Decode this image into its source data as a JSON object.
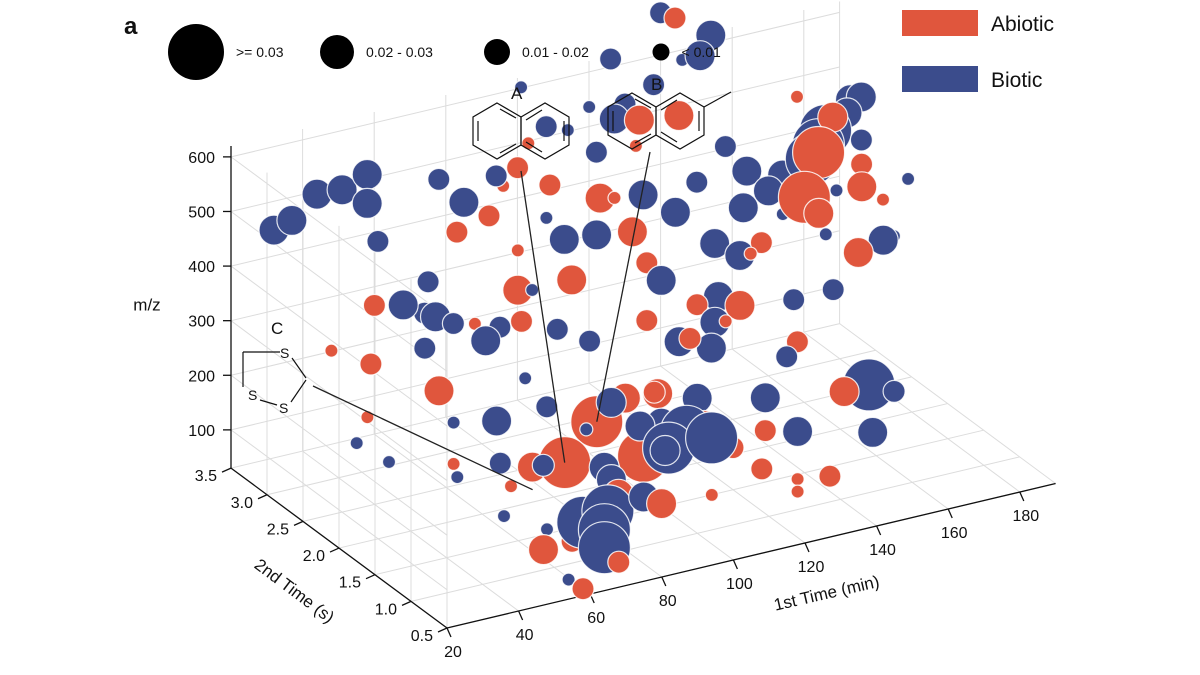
{
  "panel_label": "a",
  "chart_data": {
    "type": "scatter",
    "subtype": "3d-bubble",
    "title": "",
    "axes": {
      "x": {
        "label": "1st Time (min)",
        "ticks": [
          20,
          40,
          60,
          80,
          100,
          120,
          140,
          160,
          180
        ],
        "range": [
          20,
          190
        ]
      },
      "y": {
        "label": "2nd Time (s)",
        "ticks": [
          0.5,
          1.0,
          1.5,
          2.0,
          2.5,
          3.0,
          3.5
        ],
        "tick_labels": [
          "0.5",
          "1.0",
          "1.5",
          "2.0",
          "2.5",
          "3.0",
          "3.5"
        ],
        "range": [
          0.5,
          3.5
        ]
      },
      "z": {
        "label": "m/z",
        "ticks": [
          100,
          200,
          300,
          400,
          500,
          600
        ],
        "range": [
          30,
          620
        ]
      }
    },
    "grid": true,
    "legend": {
      "position": "top-right",
      "entries": [
        {
          "name": "Abiotic",
          "color": "#e0563d"
        },
        {
          "name": "Biotic",
          "color": "#3b4c8c"
        }
      ]
    },
    "size_legend": {
      "position": "top-left",
      "entries": [
        {
          "label": ">= 0.03",
          "class": 4
        },
        {
          "label": "0.02 - 0.03",
          "class": 3
        },
        {
          "label": "0.01 - 0.02",
          "class": 2
        },
        {
          "label": "< 0.01",
          "class": 1
        }
      ]
    },
    "annotations": [
      {
        "label": "A",
        "compound": "naphthalene",
        "anchor": [
          75,
          1.6,
          140
        ]
      },
      {
        "label": "B",
        "compound": "2-methylnaphthalene",
        "anchor": [
          88,
          1.8,
          175
        ]
      },
      {
        "label": "C",
        "compound": "1,2,4-trithiolane",
        "anchor": [
          62,
          1.4,
          130
        ]
      }
    ],
    "series": [
      {
        "name": "Abiotic",
        "color": "#e0563d",
        "points": [
          [
            50,
            3.0,
            330,
            2
          ],
          [
            45,
            2.8,
            250,
            2
          ],
          [
            58,
            2.5,
            210,
            3
          ],
          [
            70,
            1.8,
            120,
            3
          ],
          [
            75,
            1.6,
            140,
            4
          ],
          [
            88,
            1.8,
            175,
            4
          ],
          [
            95,
            1.5,
            130,
            4
          ],
          [
            100,
            2.0,
            180,
            3
          ],
          [
            105,
            1.8,
            200,
            3
          ],
          [
            112,
            1.5,
            160,
            3
          ],
          [
            118,
            1.4,
            120,
            2
          ],
          [
            125,
            1.3,
            150,
            2
          ],
          [
            132,
            2.0,
            300,
            3
          ],
          [
            140,
            1.6,
            260,
            2
          ],
          [
            150,
            1.8,
            460,
            3
          ],
          [
            150,
            2.0,
            470,
            4
          ],
          [
            155,
            1.5,
            410,
            3
          ],
          [
            158,
            2.2,
            520,
            4
          ],
          [
            162,
            1.8,
            490,
            3
          ],
          [
            168,
            2.5,
            540,
            3
          ],
          [
            170,
            2.2,
            480,
            2
          ],
          [
            145,
            1.2,
            200,
            3
          ],
          [
            135,
            0.9,
            90,
            2
          ],
          [
            75,
            2.2,
            340,
            2
          ],
          [
            80,
            2.5,
            360,
            3
          ],
          [
            85,
            2.0,
            420,
            3
          ],
          [
            78,
            2.8,
            470,
            2
          ],
          [
            65,
            2.6,
            480,
            2
          ],
          [
            90,
            3.0,
            520,
            2
          ],
          [
            95,
            2.8,
            500,
            2
          ],
          [
            105,
            2.6,
            480,
            3
          ],
          [
            110,
            2.4,
            430,
            3
          ],
          [
            120,
            2.8,
            580,
            3
          ],
          [
            125,
            2.5,
            610,
            3
          ],
          [
            180,
            2.4,
            380,
            1
          ],
          [
            118,
            1.0,
            120,
            2
          ],
          [
            60,
            1.6,
            120,
            1
          ],
          [
            55,
            0.9,
            80,
            3
          ],
          [
            65,
            1.0,
            70,
            2
          ],
          [
            82,
            1.2,
            110,
            3
          ],
          [
            60,
            0.6,
            30,
            2
          ],
          [
            72,
            0.7,
            50,
            2
          ],
          [
            90,
            1.0,
            100,
            3
          ],
          [
            100,
            0.8,
            120,
            1
          ],
          [
            130,
            1.1,
            50,
            1
          ],
          [
            132,
            1.2,
            60,
            1
          ],
          [
            42,
            3.2,
            240,
            1
          ],
          [
            40,
            2.6,
            180,
            1
          ],
          [
            48,
            1.8,
            160,
            1
          ],
          [
            105,
            2.4,
            500,
            1
          ],
          [
            93,
            3.0,
            560,
            1
          ],
          [
            115,
            2.6,
            560,
            1
          ],
          [
            138,
            3.2,
            700,
            2
          ],
          [
            88,
            3.1,
            480,
            1
          ],
          [
            135,
            2.0,
            390,
            1
          ],
          [
            112,
            2.3,
            380,
            2
          ],
          [
            160,
            2.6,
            580,
            1
          ],
          [
            108,
            2.1,
            300,
            2
          ],
          [
            66,
            2.4,
            330,
            1
          ],
          [
            82,
            2.6,
            420,
            1
          ],
          [
            120,
            2.0,
            320,
            2
          ],
          [
            142,
            2.2,
            380,
            2
          ],
          [
            112,
            1.7,
            300,
            2
          ],
          [
            100,
            1.6,
            230,
            2
          ],
          [
            126,
            1.9,
            290,
            1
          ]
        ]
      },
      {
        "name": "Biotic",
        "color": "#3b4c8c",
        "points": [
          [
            40,
            3.3,
            520,
            3
          ],
          [
            45,
            3.2,
            530,
            3
          ],
          [
            48,
            3.0,
            520,
            3
          ],
          [
            50,
            3.1,
            560,
            3
          ],
          [
            35,
            3.4,
            470,
            3
          ],
          [
            30,
            3.4,
            460,
            3
          ],
          [
            50,
            2.6,
            370,
            3
          ],
          [
            55,
            2.4,
            360,
            3
          ],
          [
            50,
            2.3,
            320,
            2
          ],
          [
            60,
            2.4,
            340,
            2
          ],
          [
            65,
            2.2,
            320,
            3
          ],
          [
            68,
            1.0,
            100,
            4
          ],
          [
            72,
            0.9,
            90,
            4
          ],
          [
            75,
            1.0,
            110,
            4
          ],
          [
            70,
            0.8,
            70,
            4
          ],
          [
            85,
            1.0,
            120,
            3
          ],
          [
            80,
            1.2,
            140,
            3
          ],
          [
            98,
            1.3,
            160,
            4
          ],
          [
            105,
            1.4,
            170,
            4
          ],
          [
            110,
            1.3,
            160,
            4
          ],
          [
            102,
            1.6,
            170,
            3
          ],
          [
            112,
            1.6,
            200,
            3
          ],
          [
            115,
            2.0,
            260,
            3
          ],
          [
            120,
            1.8,
            260,
            3
          ],
          [
            125,
            2.0,
            280,
            3
          ],
          [
            130,
            2.2,
            300,
            3
          ],
          [
            135,
            2.5,
            360,
            3
          ],
          [
            140,
            2.4,
            340,
            3
          ],
          [
            145,
            2.6,
            400,
            3
          ],
          [
            150,
            2.8,
            440,
            3
          ],
          [
            152,
            2.6,
            420,
            3
          ],
          [
            158,
            2.7,
            430,
            3
          ],
          [
            164,
            2.6,
            460,
            4
          ],
          [
            168,
            2.7,
            470,
            4
          ],
          [
            172,
            2.8,
            480,
            4
          ],
          [
            176,
            2.9,
            480,
            3
          ],
          [
            180,
            2.9,
            490,
            3
          ],
          [
            183,
            3.0,
            500,
            3
          ],
          [
            186,
            3.0,
            500,
            3
          ],
          [
            180,
            2.7,
            460,
            2
          ],
          [
            160,
            1.6,
            150,
            4
          ],
          [
            155,
            1.3,
            100,
            3
          ],
          [
            165,
            1.5,
            140,
            2
          ],
          [
            115,
            2.9,
            580,
            3
          ],
          [
            120,
            3.0,
            590,
            2
          ],
          [
            130,
            3.1,
            600,
            2
          ],
          [
            145,
            3.2,
            620,
            3
          ],
          [
            150,
            3.3,
            640,
            3
          ],
          [
            95,
            2.6,
            420,
            3
          ],
          [
            100,
            2.4,
            440,
            3
          ],
          [
            110,
            2.0,
            380,
            3
          ],
          [
            120,
            2.3,
            460,
            3
          ],
          [
            130,
            2.5,
            480,
            2
          ],
          [
            140,
            2.6,
            520,
            2
          ],
          [
            85,
            2.2,
            310,
            2
          ],
          [
            90,
            2.0,
            300,
            2
          ],
          [
            75,
            2.5,
            300,
            2
          ],
          [
            60,
            2.8,
            320,
            2
          ],
          [
            65,
            3.0,
            350,
            2
          ],
          [
            55,
            3.2,
            420,
            2
          ],
          [
            170,
            1.9,
            370,
            3
          ],
          [
            175,
            2.0,
            360,
            1
          ],
          [
            75,
            3.0,
            480,
            3
          ],
          [
            80,
            2.8,
            540,
            2
          ],
          [
            70,
            3.1,
            520,
            2
          ],
          [
            60,
            1.8,
            220,
            3
          ],
          [
            55,
            1.5,
            180,
            2
          ],
          [
            65,
            1.4,
            170,
            2
          ],
          [
            70,
            1.6,
            250,
            2
          ],
          [
            88,
            1.6,
            230,
            3
          ],
          [
            92,
            1.4,
            200,
            3
          ],
          [
            95,
            1.2,
            170,
            3
          ],
          [
            82,
            1.4,
            140,
            3
          ],
          [
            78,
            1.7,
            150,
            2
          ],
          [
            125,
            1.3,
            210,
            3
          ],
          [
            130,
            1.1,
            160,
            3
          ],
          [
            135,
            1.5,
            250,
            2
          ],
          [
            145,
            1.9,
            300,
            2
          ],
          [
            150,
            1.6,
            340,
            2
          ],
          [
            115,
            2.5,
            480,
            3
          ],
          [
            108,
            2.8,
            540,
            2
          ],
          [
            100,
            3.1,
            570,
            2
          ],
          [
            122,
            3.3,
            640,
            2
          ],
          [
            138,
            3.4,
            690,
            2
          ],
          [
            62,
            2.0,
            200,
            1
          ],
          [
            72,
            2.0,
            260,
            1
          ],
          [
            52,
            2.0,
            210,
            1
          ],
          [
            80,
            2.3,
            380,
            1
          ],
          [
            88,
            2.5,
            480,
            1
          ],
          [
            95,
            3.2,
            640,
            1
          ],
          [
            102,
            2.9,
            580,
            1
          ],
          [
            110,
            3.0,
            600,
            1
          ],
          [
            140,
            3.2,
            620,
            1
          ],
          [
            158,
            2.1,
            380,
            1
          ],
          [
            150,
            2.3,
            410,
            1
          ],
          [
            165,
            2.3,
            430,
            1
          ],
          [
            185,
            2.3,
            420,
            1
          ],
          [
            45,
            1.6,
            160,
            1
          ],
          [
            50,
            1.2,
            120,
            1
          ],
          [
            58,
            0.7,
            40,
            1
          ],
          [
            75,
            1.3,
            230,
            1
          ],
          [
            60,
            1.1,
            90,
            1
          ],
          [
            38,
            2.2,
            140,
            1
          ],
          [
            35,
            2.5,
            150,
            1
          ]
        ]
      }
    ]
  }
}
